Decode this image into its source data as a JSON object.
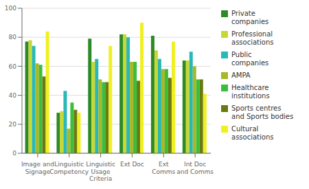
{
  "chart_data": {
    "type": "bar",
    "categories": [
      "Image and\nSignage",
      "Linguistic\nCompetency",
      "Linguistic\nUsage\nCriteria",
      "Ext Doc",
      "Ext\nComms",
      "Int Doc\nand Comms"
    ],
    "series": [
      {
        "name": "Private\ncompanies",
        "color": "#2d8a27",
        "values": [
          77,
          28,
          79,
          82,
          81,
          64
        ]
      },
      {
        "name": "Professional\nassociations",
        "color": "#c8d832",
        "values": [
          78,
          29,
          63,
          82,
          71,
          64
        ]
      },
      {
        "name": "Public\ncompanies",
        "color": "#29b8b8",
        "values": [
          74,
          43,
          65,
          80,
          65,
          70
        ]
      },
      {
        "name": "AMPA",
        "color": "#a8b828",
        "values": [
          62,
          17,
          51,
          63,
          58,
          60
        ]
      },
      {
        "name": "Healthcare\ninstitutions",
        "color": "#3cbd3c",
        "values": [
          61,
          35,
          49,
          63,
          58,
          51
        ]
      },
      {
        "name": "Sports centres\nand Sports bodies",
        "color": "#6b7a10",
        "values": [
          53,
          30,
          49,
          50,
          52,
          51
        ]
      },
      {
        "name": "Cultural\nassociations",
        "color": "#f0f020",
        "values": [
          84,
          28,
          74,
          90,
          77,
          41
        ]
      }
    ],
    "ylim": [
      0,
      100
    ],
    "yticks": [
      0,
      20,
      40,
      60,
      80,
      100
    ],
    "grid": true,
    "legend": "right"
  }
}
